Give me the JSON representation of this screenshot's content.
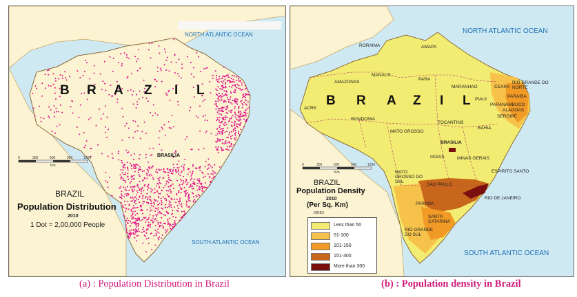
{
  "panel_a": {
    "ocean_north": "NORTH ATLANTIC OCEAN",
    "ocean_south": "SOUTH ATLANTIC OCEAN",
    "country_letters": [
      "B",
      "R",
      "A",
      "Z",
      "I",
      "L"
    ],
    "capital": "BRASILIA",
    "scale_ticks": [
      "0",
      "300",
      "600",
      "900",
      "1200"
    ],
    "scale_unit": "Km",
    "title_country": "BRAZIL",
    "title": "Population Distribution",
    "year": "2010",
    "dot_note": "1 Dot = 2,00,000 People",
    "colors": {
      "land": "#fbf3d2",
      "ocean": "#cfe9f3",
      "dots": "#e0108a"
    }
  },
  "panel_b": {
    "ocean_north": "NORTH ATLANTIC OCEAN",
    "ocean_south": "SOUTH ATLANTIC OCEAN",
    "country_letters": [
      "B",
      "R",
      "A",
      "Z",
      "I",
      "L"
    ],
    "states": {
      "roraima": "RORAIMA",
      "amapa": "AMAPA",
      "amazonas": "AMAZONAS",
      "manaus": "MANAUS",
      "para": "PARA",
      "maranhao": "MARANHAO",
      "ceara": "CEARA",
      "rio_grande_do_norte": "RIO GRANDE DO NORTE",
      "paraiba": "PARAIBA",
      "piaui": "PIAUI",
      "pernambuco": "PARANAMBUCO",
      "alagoas": "ALAGOAS",
      "sergipe": "SERGIPE",
      "acre": "ACRE",
      "rondonia": "RONDONIA",
      "tocantins": "TOCANTINS",
      "bahia": "BAHIA",
      "mato_grosso": "MATO GROSSO",
      "brasilia": "BRASILIA",
      "goias": "GOIAS",
      "minas_gerais": "MINAS GERAIS",
      "mato_grosso_do_sul": "MATO GROSSO DO SUL",
      "espirito_santo": "ESPIRITO SANTO",
      "sao_paulo": "SAO PAULO",
      "rio_de_janeiro": "RIO DE JANEIRO",
      "parana": "PARANA",
      "santa_catarina": "SANTA CATARINA",
      "rio_grande_do_sul": "RIO GRANDE DO SUL"
    },
    "scale_ticks": [
      "0",
      "300",
      "600",
      "900",
      "1200"
    ],
    "scale_unit": "Km",
    "title_country": "BRAZIL",
    "title": "Population Density",
    "year": "2010",
    "units": "(Per Sq. Km)",
    "legend_title": "INDEX",
    "legend": [
      {
        "label": "Less than 50",
        "color": "#f3ec72"
      },
      {
        "label": "51-100",
        "color": "#f7c24a"
      },
      {
        "label": "101-150",
        "color": "#f29a26"
      },
      {
        "label": "151-300",
        "color": "#c8661b"
      },
      {
        "label": "More than 300",
        "color": "#7a0f0f"
      }
    ]
  },
  "captions": {
    "a": "(a) : Population Distribution in Brazil",
    "b": "(b) :  Population density in Brazil"
  }
}
